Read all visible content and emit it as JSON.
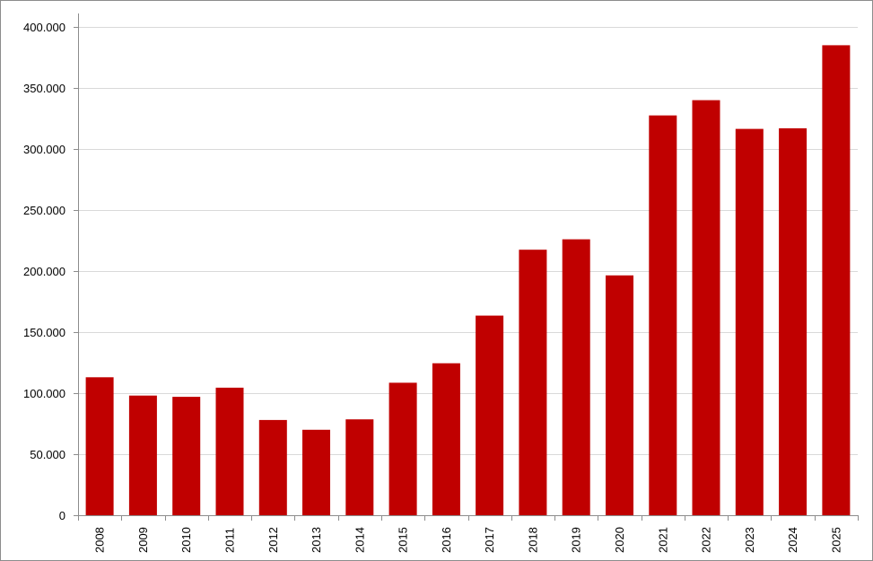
{
  "chart_data": {
    "type": "bar",
    "title": "",
    "xlabel": "",
    "ylabel": "",
    "categories": [
      "2008",
      "2009",
      "2010",
      "2011",
      "2012",
      "2013",
      "2014",
      "2015",
      "2016",
      "2017",
      "2018",
      "2019",
      "2020",
      "2021",
      "2022",
      "2023",
      "2024",
      "2025"
    ],
    "values": [
      113000,
      98000,
      97000,
      104500,
      78000,
      70000,
      78500,
      108500,
      124500,
      163500,
      217500,
      226000,
      196500,
      327500,
      340000,
      316500,
      317000,
      385000
    ],
    "ylim": [
      0,
      400000
    ],
    "yticks": [
      0,
      50000,
      100000,
      150000,
      200000,
      250000,
      300000,
      350000,
      400000
    ],
    "ytick_labels": [
      "0",
      "50.000",
      "100.000",
      "150.000",
      "200.000",
      "250.000",
      "300.000",
      "350.000",
      "400.000"
    ],
    "grid": true,
    "legend": "none",
    "bar_color": "#c00000",
    "grid_color": "#d9d9d9"
  }
}
